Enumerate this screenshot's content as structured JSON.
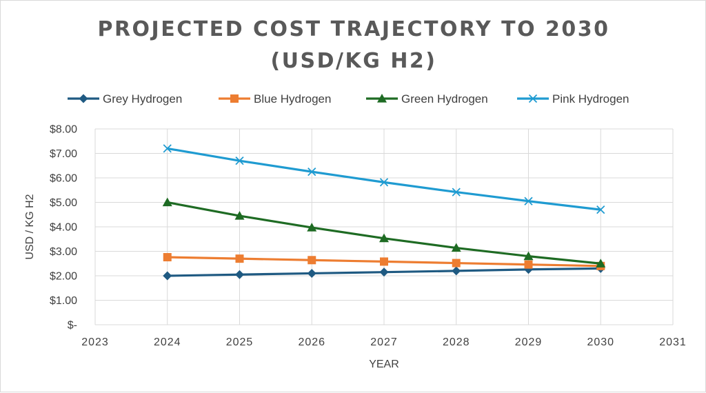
{
  "chart_data": {
    "type": "line",
    "title_lines": [
      "PROJECTED COST TRAJECTORY TO 2030",
      "(USD/KG H2)"
    ],
    "xlabel": "YEAR",
    "ylabel": "USD / KG H2",
    "xlim": [
      2023,
      2031
    ],
    "ylim": [
      0,
      8
    ],
    "x_ticks": [
      "2023",
      "2024",
      "2025",
      "2026",
      "2027",
      "2028",
      "2029",
      "2030",
      "2031"
    ],
    "y_ticks": [
      "$-",
      "$1.00",
      "$2.00",
      "$3.00",
      "$4.00",
      "$5.00",
      "$6.00",
      "$7.00",
      "$8.00"
    ],
    "grid": true,
    "legend_position": "top",
    "x": [
      2024,
      2025,
      2026,
      2027,
      2028,
      2029,
      2030
    ],
    "series": [
      {
        "name": "Grey Hydrogen",
        "color": "#1f5a82",
        "marker": "diamond",
        "values": [
          2.0,
          2.05,
          2.1,
          2.15,
          2.2,
          2.26,
          2.3
        ]
      },
      {
        "name": "Blue Hydrogen",
        "color": "#ed7d31",
        "marker": "square",
        "values": [
          2.76,
          2.7,
          2.64,
          2.58,
          2.52,
          2.46,
          2.4
        ]
      },
      {
        "name": "Green Hydrogen",
        "color": "#1e6b23",
        "marker": "triangle",
        "values": [
          5.0,
          4.45,
          3.97,
          3.53,
          3.14,
          2.8,
          2.5
        ]
      },
      {
        "name": "Pink Hydrogen",
        "color": "#1f9bd1",
        "marker": "x",
        "values": [
          7.2,
          6.7,
          6.25,
          5.82,
          5.42,
          5.05,
          4.7
        ]
      }
    ]
  }
}
